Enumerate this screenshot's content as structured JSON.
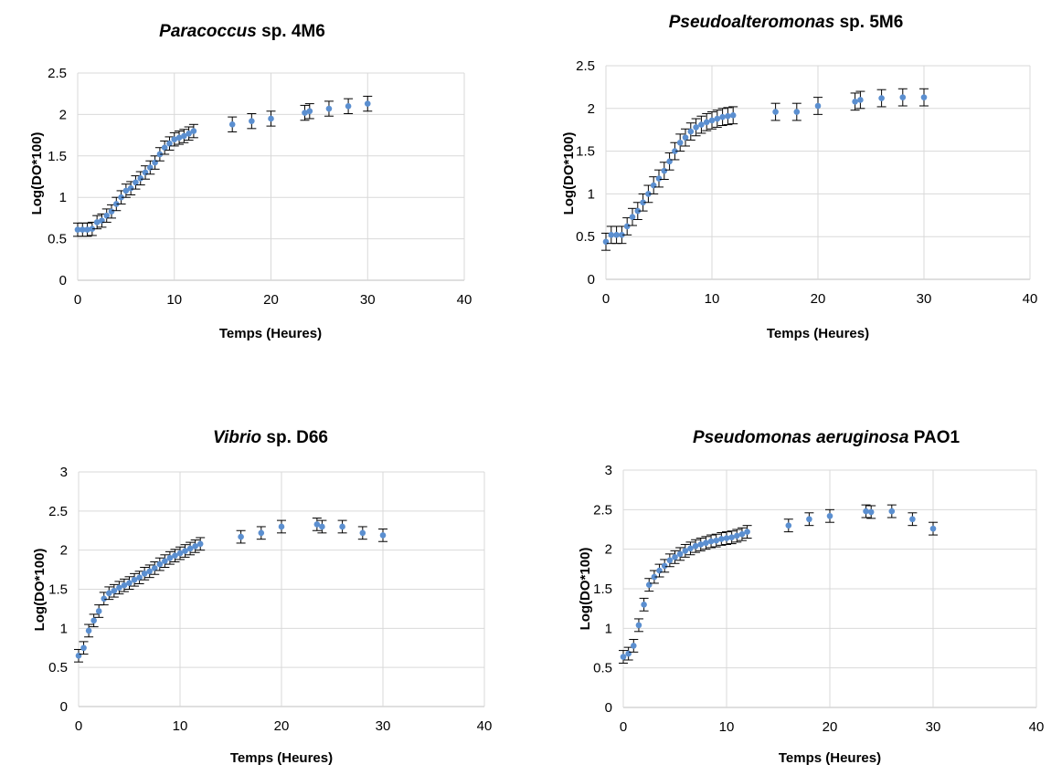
{
  "chart_data": [
    {
      "type": "scatter",
      "title_italic": "Paracoccus",
      "title_rest": " sp. 4M6",
      "xlabel": "Temps (Heures)",
      "ylabel": "Log(DO*100)",
      "xlim": [
        0,
        40
      ],
      "ylim": [
        0,
        2.5
      ],
      "xticks": [
        "0",
        "10",
        "20",
        "30",
        "40"
      ],
      "yticks": [
        "0",
        "0.5",
        "1",
        "1.5",
        "2",
        "2.5"
      ],
      "grid": true,
      "series": [
        {
          "x": [
            0,
            0.5,
            1,
            1.5,
            2,
            2.5,
            3,
            3.5,
            4,
            4.5,
            5,
            5.5,
            6,
            6.5,
            7,
            7.5,
            8,
            8.5,
            9,
            9.5,
            10,
            10.5,
            11,
            11.5,
            12,
            16,
            18,
            20,
            23.5,
            24,
            26,
            28,
            30
          ],
          "y": [
            0.61,
            0.61,
            0.61,
            0.62,
            0.7,
            0.72,
            0.78,
            0.83,
            0.92,
            1.0,
            1.08,
            1.11,
            1.18,
            1.23,
            1.3,
            1.36,
            1.42,
            1.52,
            1.6,
            1.65,
            1.7,
            1.72,
            1.74,
            1.77,
            1.8,
            1.88,
            1.92,
            1.95,
            2.02,
            2.04,
            2.07,
            2.1,
            2.13
          ],
          "err": [
            0.08,
            0.08,
            0.08,
            0.08,
            0.08,
            0.08,
            0.08,
            0.08,
            0.08,
            0.08,
            0.08,
            0.08,
            0.08,
            0.08,
            0.08,
            0.08,
            0.08,
            0.08,
            0.08,
            0.08,
            0.08,
            0.08,
            0.08,
            0.08,
            0.08,
            0.09,
            0.09,
            0.09,
            0.09,
            0.09,
            0.09,
            0.09,
            0.09
          ]
        }
      ]
    },
    {
      "type": "scatter",
      "title_italic": "Pseudoalteromonas",
      "title_rest": " sp. 5M6",
      "xlabel": "Temps (Heures)",
      "ylabel": "Log(DO*100)",
      "xlim": [
        0,
        40
      ],
      "ylim": [
        0,
        2.5
      ],
      "xticks": [
        "0",
        "10",
        "20",
        "30",
        "40"
      ],
      "yticks": [
        "0",
        "0.5",
        "1",
        "1.5",
        "2",
        "2.5"
      ],
      "grid": true,
      "series": [
        {
          "x": [
            0,
            0.5,
            1,
            1.5,
            2,
            2.5,
            3,
            3.5,
            4,
            4.5,
            5,
            5.5,
            6,
            6.5,
            7,
            7.5,
            8,
            8.5,
            9,
            9.5,
            10,
            10.5,
            11,
            11.5,
            12,
            16,
            18,
            20,
            23.5,
            24,
            26,
            28,
            30
          ],
          "y": [
            0.44,
            0.52,
            0.52,
            0.52,
            0.62,
            0.73,
            0.8,
            0.9,
            1.0,
            1.1,
            1.18,
            1.27,
            1.38,
            1.5,
            1.6,
            1.66,
            1.73,
            1.78,
            1.81,
            1.84,
            1.86,
            1.88,
            1.9,
            1.91,
            1.92,
            1.96,
            1.96,
            2.03,
            2.08,
            2.1,
            2.12,
            2.13,
            2.13
          ],
          "err": [
            0.1,
            0.1,
            0.1,
            0.1,
            0.1,
            0.1,
            0.1,
            0.1,
            0.1,
            0.1,
            0.1,
            0.1,
            0.1,
            0.1,
            0.1,
            0.1,
            0.1,
            0.1,
            0.1,
            0.1,
            0.1,
            0.1,
            0.1,
            0.1,
            0.1,
            0.1,
            0.1,
            0.1,
            0.1,
            0.1,
            0.1,
            0.1,
            0.1
          ]
        }
      ]
    },
    {
      "type": "scatter",
      "title_italic": "Vibrio",
      "title_rest": " sp. D66",
      "xlabel": "Temps (Heures)",
      "ylabel": "Log(DO*100)",
      "xlim": [
        0,
        40
      ],
      "ylim": [
        0,
        3
      ],
      "xticks": [
        "0",
        "10",
        "20",
        "30",
        "40"
      ],
      "yticks": [
        "0",
        "0.5",
        "1",
        "1.5",
        "2",
        "2.5",
        "3"
      ],
      "grid": true,
      "series": [
        {
          "x": [
            0,
            0.5,
            1,
            1.5,
            2,
            2.5,
            3,
            3.5,
            4,
            4.5,
            5,
            5.5,
            6,
            6.5,
            7,
            7.5,
            8,
            8.5,
            9,
            9.5,
            10,
            10.5,
            11,
            11.5,
            12,
            16,
            18,
            20,
            23.5,
            24,
            26,
            28,
            30
          ],
          "y": [
            0.65,
            0.75,
            0.97,
            1.1,
            1.22,
            1.38,
            1.45,
            1.48,
            1.52,
            1.55,
            1.58,
            1.62,
            1.65,
            1.7,
            1.73,
            1.77,
            1.82,
            1.86,
            1.9,
            1.93,
            1.96,
            1.99,
            2.02,
            2.05,
            2.08,
            2.17,
            2.22,
            2.3,
            2.33,
            2.3,
            2.3,
            2.22,
            2.19
          ],
          "err": [
            0.08,
            0.08,
            0.08,
            0.08,
            0.08,
            0.08,
            0.08,
            0.08,
            0.08,
            0.08,
            0.08,
            0.08,
            0.08,
            0.08,
            0.08,
            0.08,
            0.08,
            0.08,
            0.08,
            0.08,
            0.08,
            0.08,
            0.08,
            0.08,
            0.08,
            0.08,
            0.08,
            0.08,
            0.08,
            0.08,
            0.08,
            0.08,
            0.08
          ]
        }
      ]
    },
    {
      "type": "scatter",
      "title_italic": "Pseudomonas aeruginosa",
      "title_rest": " PAO1",
      "xlabel": "Temps (Heures)",
      "ylabel": "Log(DO*100)",
      "xlim": [
        0,
        40
      ],
      "ylim": [
        0,
        3
      ],
      "xticks": [
        "0",
        "10",
        "20",
        "30",
        "40"
      ],
      "yticks": [
        "0",
        "0.5",
        "1",
        "1.5",
        "2",
        "2.5",
        "3"
      ],
      "grid": true,
      "series": [
        {
          "x": [
            0,
            0.5,
            1,
            1.5,
            2,
            2.5,
            3,
            3.5,
            4,
            4.5,
            5,
            5.5,
            6,
            6.5,
            7,
            7.5,
            8,
            8.5,
            9,
            9.5,
            10,
            10.5,
            11,
            11.5,
            12,
            16,
            18,
            20,
            23.5,
            24,
            26,
            28,
            30
          ],
          "y": [
            0.64,
            0.68,
            0.78,
            1.04,
            1.3,
            1.55,
            1.65,
            1.73,
            1.79,
            1.86,
            1.9,
            1.94,
            1.98,
            2.01,
            2.04,
            2.06,
            2.08,
            2.1,
            2.11,
            2.13,
            2.14,
            2.15,
            2.17,
            2.19,
            2.22,
            2.3,
            2.38,
            2.42,
            2.48,
            2.47,
            2.48,
            2.38,
            2.26
          ],
          "err": [
            0.08,
            0.08,
            0.08,
            0.08,
            0.08,
            0.08,
            0.08,
            0.08,
            0.08,
            0.08,
            0.08,
            0.08,
            0.08,
            0.08,
            0.08,
            0.08,
            0.08,
            0.08,
            0.08,
            0.08,
            0.08,
            0.08,
            0.08,
            0.08,
            0.08,
            0.08,
            0.08,
            0.08,
            0.08,
            0.08,
            0.08,
            0.08,
            0.08
          ]
        }
      ]
    }
  ]
}
